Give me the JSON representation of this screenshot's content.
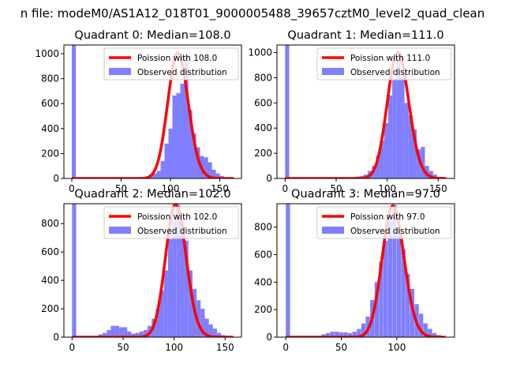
{
  "suptitle": "n file: modeM0/AS1A12_018T01_9000005488_39657cztM0_level2_quad_clean",
  "chart_data": [
    {
      "type": "bar",
      "title": "Quadrant 0: Median=108.0",
      "xlim": [
        -8,
        172
      ],
      "ylim": [
        0,
        1070
      ],
      "xticks": [
        0,
        50,
        100,
        150
      ],
      "yticks": [
        0,
        200,
        400,
        600,
        800,
        1000
      ],
      "legend_loc": "upper-right",
      "poisson_mean": 108,
      "poisson_scale": 1007,
      "series": [
        {
          "name": "Poission with 108.0",
          "kind": "line",
          "color": "#ff0000"
        },
        {
          "name": "Observed distribution",
          "kind": "hist",
          "color": "#7f7fff",
          "bin_width": 4.1,
          "x": [
            0,
            70,
            74,
            78,
            82,
            86,
            90,
            94,
            98,
            102,
            106,
            110,
            114,
            118,
            122,
            126,
            130,
            134,
            138,
            142,
            146,
            150,
            154
          ],
          "values": [
            1070,
            10,
            15,
            30,
            40,
            60,
            140,
            280,
            400,
            665,
            685,
            760,
            990,
            550,
            360,
            250,
            180,
            170,
            130,
            70,
            40,
            20,
            10
          ]
        }
      ]
    },
    {
      "type": "bar",
      "title": "Quadrant 1: Median=111.0",
      "xlim": [
        -8,
        166
      ],
      "ylim": [
        0,
        1060
      ],
      "xticks": [
        0,
        50,
        100,
        150
      ],
      "yticks": [
        0,
        200,
        400,
        600,
        800,
        1000
      ],
      "legend_loc": "upper-right",
      "poisson_mean": 111,
      "poisson_scale": 1000,
      "series": [
        {
          "name": "Poission with 111.0",
          "kind": "line",
          "color": "#ff0000"
        },
        {
          "name": "Observed distribution",
          "kind": "hist",
          "color": "#7f7fff",
          "bin_width": 4,
          "x": [
            0,
            65,
            69,
            73,
            77,
            81,
            85,
            89,
            93,
            97,
            101,
            105,
            109,
            113,
            117,
            121,
            125,
            129,
            133,
            137,
            141,
            145,
            149
          ],
          "values": [
            1060,
            10,
            15,
            20,
            30,
            60,
            100,
            180,
            300,
            440,
            660,
            790,
            1005,
            800,
            600,
            500,
            390,
            230,
            250,
            100,
            60,
            30,
            10
          ]
        }
      ]
    },
    {
      "type": "bar",
      "title": "Quadrant 2: Median=102.0",
      "xlim": [
        -8,
        166
      ],
      "ylim": [
        0,
        940
      ],
      "xticks": [
        0,
        50,
        100,
        150
      ],
      "yticks": [
        0,
        200,
        400,
        600,
        800
      ],
      "legend_loc": "upper-right",
      "poisson_mean": 102,
      "poisson_scale": 935,
      "series": [
        {
          "name": "Poission with 102.0",
          "kind": "line",
          "color": "#ff0000"
        },
        {
          "name": "Observed distribution",
          "kind": "hist",
          "color": "#7f7fff",
          "bin_width": 4,
          "x": [
            0,
            22,
            26,
            30,
            34,
            38,
            42,
            46,
            50,
            54,
            58,
            62,
            66,
            70,
            74,
            78,
            82,
            86,
            90,
            94,
            98,
            102,
            106,
            110,
            114,
            118,
            122,
            126,
            130,
            134,
            138,
            142,
            146,
            150
          ],
          "values": [
            940,
            10,
            20,
            30,
            50,
            80,
            80,
            70,
            70,
            40,
            25,
            30,
            40,
            50,
            80,
            130,
            200,
            330,
            470,
            690,
            830,
            930,
            840,
            680,
            470,
            340,
            260,
            200,
            130,
            90,
            60,
            30,
            15,
            5
          ]
        }
      ]
    },
    {
      "type": "bar",
      "title": "Quadrant 3: Median=97.0",
      "xlim": [
        -8,
        152
      ],
      "ylim": [
        0,
        970
      ],
      "xticks": [
        0,
        50,
        100
      ],
      "yticks": [
        0,
        200,
        400,
        600,
        800
      ],
      "legend_loc": "upper-right",
      "poisson_mean": 97,
      "poisson_scale": 955,
      "series": [
        {
          "name": "Poission with 97.0",
          "kind": "line",
          "color": "#ff0000"
        },
        {
          "name": "Observed distribution",
          "kind": "hist",
          "color": "#7f7fff",
          "bin_width": 3.8,
          "x": [
            0,
            28,
            32,
            36,
            40,
            44,
            48,
            52,
            56,
            60,
            64,
            68,
            72,
            76,
            80,
            84,
            88,
            92,
            96,
            100,
            104,
            108,
            112,
            116,
            120,
            124,
            128,
            132,
            136,
            140
          ],
          "values": [
            970,
            10,
            20,
            30,
            40,
            40,
            35,
            35,
            30,
            40,
            60,
            100,
            150,
            270,
            400,
            550,
            700,
            850,
            960,
            800,
            640,
            460,
            350,
            240,
            170,
            100,
            60,
            30,
            15,
            5
          ]
        }
      ]
    }
  ]
}
